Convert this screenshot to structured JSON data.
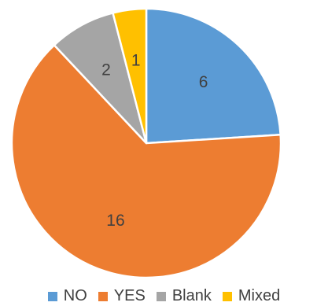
{
  "chart_data": {
    "type": "pie",
    "title": "",
    "categories": [
      "NO",
      "YES",
      "Blank",
      "Mixed"
    ],
    "values": [
      6,
      16,
      2,
      1
    ],
    "labels": [
      "6",
      "16",
      "2",
      "1"
    ],
    "colors": [
      "#5B9BD5",
      "#ED7D31",
      "#A5A5A5",
      "#FFC000"
    ],
    "start_angle": "12 o'clock",
    "direction": "clockwise",
    "legend_position": "bottom",
    "data_labels": "inside"
  }
}
